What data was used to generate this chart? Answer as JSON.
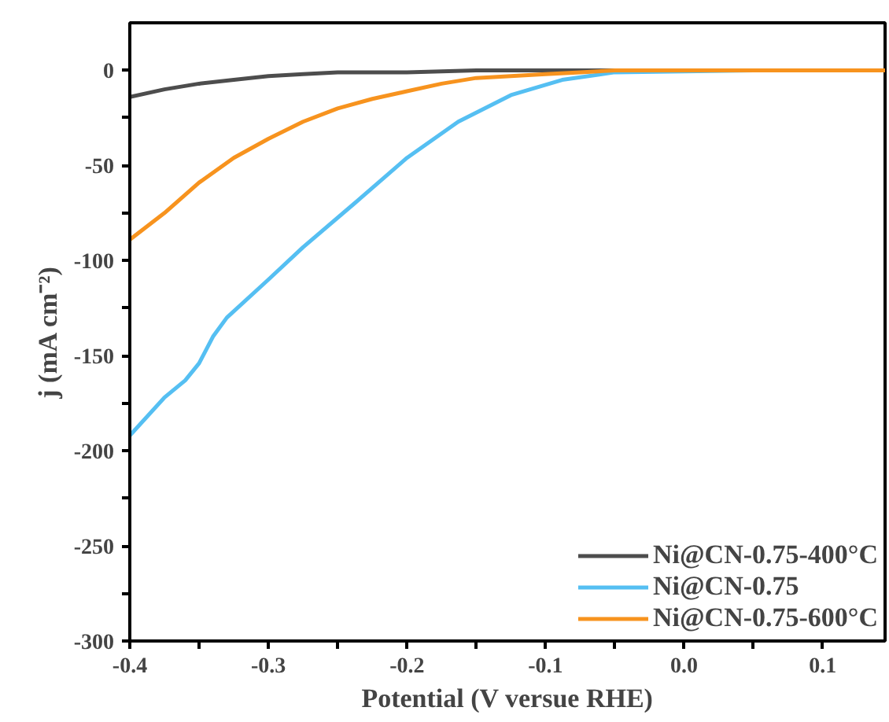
{
  "chart_data": {
    "type": "line",
    "xlabel": "Potential (V versue RHE)",
    "ylabel": "j (mA cm⁻²)",
    "xlim": [
      -0.4,
      0.145
    ],
    "ylim": [
      -300,
      25
    ],
    "xticks": [
      -0.4,
      {
        "value": -0.35,
        "label": null
      },
      -0.3,
      {
        "value": -0.25,
        "label": null
      },
      -0.2,
      {
        "value": -0.15,
        "label": null
      },
      -0.1,
      {
        "value": -0.05,
        "label": null
      },
      {
        "value": 0,
        "label": "0.0"
      },
      {
        "value": 0.05,
        "label": null
      },
      0.1
    ],
    "yticks": [
      -300,
      {
        "value": -275,
        "label": null
      },
      -250,
      {
        "value": -225,
        "label": null
      },
      -200,
      {
        "value": -175,
        "label": null
      },
      -150,
      {
        "value": -125,
        "label": null
      },
      -100,
      {
        "value": -75,
        "label": null
      },
      -50,
      {
        "value": -25,
        "label": null
      },
      0
    ],
    "grid": false,
    "legend": "bottom right",
    "series": [
      {
        "name": "Ni@CN-0.75-400°C",
        "color": "#4d4d4d",
        "x": [
          -0.4,
          -0.375,
          -0.35,
          -0.325,
          -0.3,
          -0.275,
          -0.25,
          -0.2,
          -0.15,
          -0.1,
          0,
          0.145
        ],
        "values": [
          -14,
          -10,
          -7,
          -5,
          -3,
          -2,
          -1,
          -1,
          0,
          0,
          0,
          0
        ]
      },
      {
        "name": "Ni@CN-0.75",
        "color": "#55bff2",
        "x": [
          -0.4,
          -0.375,
          -0.36,
          -0.35,
          -0.34,
          -0.33,
          -0.3,
          -0.275,
          -0.238,
          -0.2,
          -0.163,
          -0.125,
          -0.088,
          -0.05,
          0.05,
          0.145
        ],
        "values": [
          -192,
          -172,
          -163,
          -154,
          -140,
          -130,
          -110,
          -93,
          -70,
          -46,
          -27,
          -13,
          -5,
          -1,
          0,
          0
        ]
      },
      {
        "name": "Ni@CN-0.75-600°C",
        "color": "#f7931e",
        "x": [
          -0.4,
          -0.375,
          -0.35,
          -0.325,
          -0.3,
          -0.275,
          -0.25,
          -0.225,
          -0.2,
          -0.175,
          -0.15,
          -0.125,
          -0.1,
          -0.075,
          -0.05,
          0,
          0.145
        ],
        "values": [
          -89,
          -75,
          -59,
          -46,
          -36,
          -27,
          -20,
          -15,
          -11,
          -7,
          -4,
          -3,
          -2,
          -1,
          0,
          0,
          0
        ]
      }
    ]
  }
}
